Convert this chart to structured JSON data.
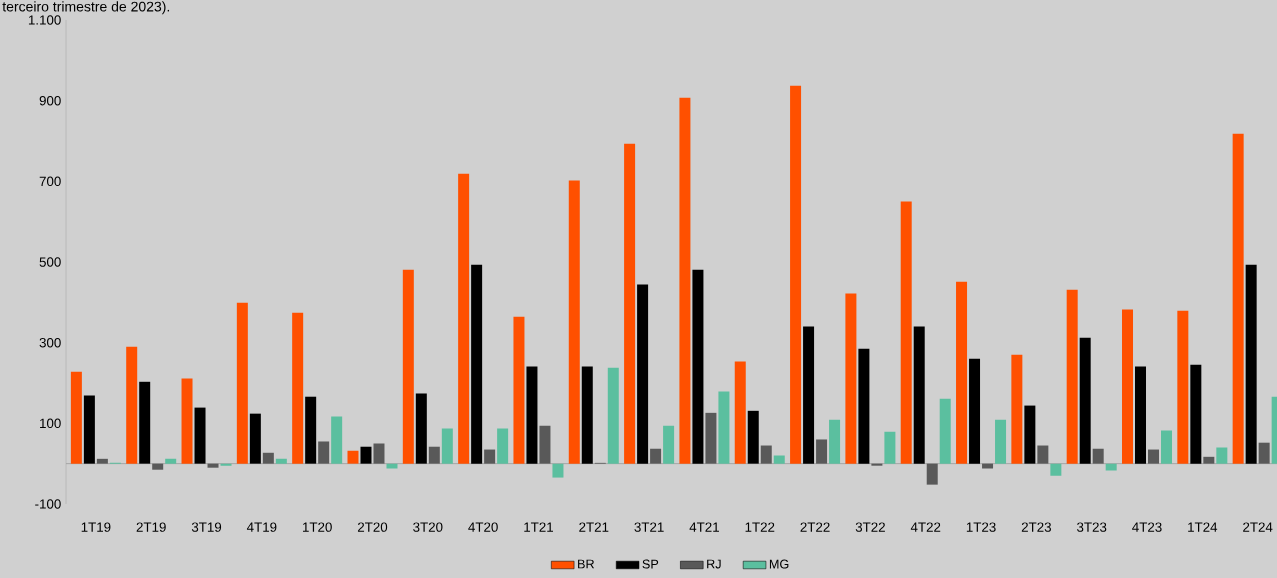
{
  "chart_data": {
    "type": "bar",
    "title": "terceiro trimestre de 2023).",
    "categories": [
      "1T19",
      "2T19",
      "3T19",
      "4T19",
      "1T20",
      "2T20",
      "3T20",
      "4T20",
      "1T21",
      "2T21",
      "3T21",
      "4T21",
      "1T22",
      "2T22",
      "3T22",
      "4T22",
      "1T23",
      "2T23",
      "3T23",
      "4T23",
      "1T24",
      "2T24"
    ],
    "series": [
      {
        "name": "BR",
        "color": "#ff5000",
        "values": [
          228,
          290,
          211,
          399,
          374,
          32,
          481,
          719,
          364,
          702,
          793,
          907,
          253,
          937,
          422,
          650,
          451,
          270,
          431,
          382,
          379,
          818
        ]
      },
      {
        "name": "SP",
        "color": "#000000",
        "values": [
          169,
          203,
          139,
          124,
          166,
          42,
          174,
          493,
          241,
          241,
          444,
          481,
          131,
          340,
          285,
          340,
          260,
          144,
          312,
          241,
          245,
          493
        ]
      },
      {
        "name": "RJ",
        "color": "#595959",
        "values": [
          12,
          -15,
          -10,
          27,
          55,
          50,
          42,
          35,
          94,
          2,
          37,
          126,
          45,
          60,
          -5,
          -52,
          -12,
          45,
          37,
          35,
          17,
          52
        ]
      },
      {
        "name": "MG",
        "color": "#5bbf9f",
        "values": [
          2,
          12,
          -5,
          12,
          117,
          -12,
          87,
          87,
          -35,
          238,
          94,
          179,
          20,
          109,
          79,
          161,
          109,
          -30,
          -17,
          82,
          40,
          166
        ]
      }
    ],
    "ylim": [
      -100,
      1100
    ],
    "yticks": [
      {
        "value": -100,
        "label": "-100"
      },
      100,
      300,
      500,
      700,
      900,
      {
        "value": 1100,
        "label": "1.100"
      }
    ],
    "legend": "bottom"
  }
}
